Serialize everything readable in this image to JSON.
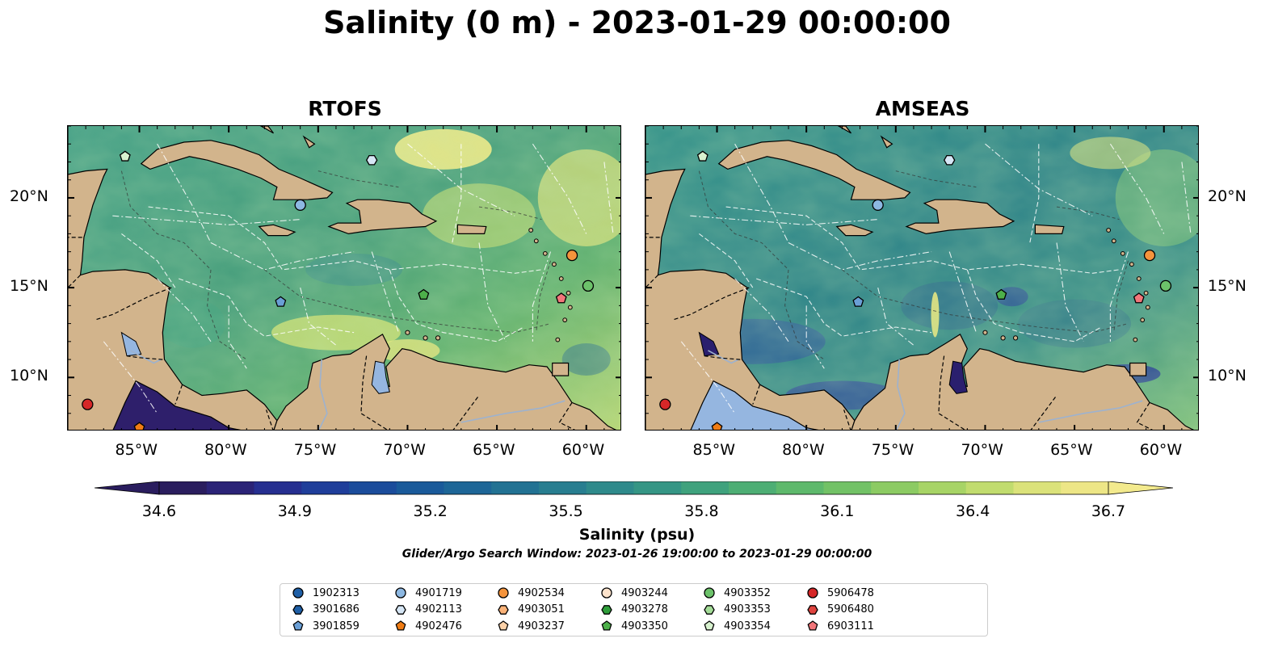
{
  "title": "Salinity (0 m) - 2023-01-29 00:00:00",
  "panels": [
    {
      "title": "RTOFS"
    },
    {
      "title": "AMSEAS"
    }
  ],
  "axes": {
    "lon_labels": [
      "85°W",
      "80°W",
      "75°W",
      "70°W",
      "65°W",
      "60°W"
    ],
    "lat_labels": [
      "20°N",
      "15°N",
      "10°N"
    ],
    "extent": {
      "lon": [
        -89,
        -58
      ],
      "lat": [
        7,
        24
      ]
    }
  },
  "colorbar": {
    "label": "Salinity (psu)",
    "ticks": [
      "34.6",
      "34.9",
      "35.2",
      "35.5",
      "35.8",
      "36.1",
      "36.4",
      "36.7"
    ],
    "range": [
      34.6,
      36.7
    ],
    "colormap": "haline",
    "extend": "both"
  },
  "search_window": "Glider/Argo Search Window: 2023-01-26 19:00:00 to 2023-01-29 00:00:00",
  "legend": [
    {
      "id": "1902313",
      "marker": "circle",
      "color": "#1f5fa6"
    },
    {
      "id": "3901686",
      "marker": "hexagon",
      "color": "#1f5fa6"
    },
    {
      "id": "3901859",
      "marker": "pentagon",
      "color": "#6a9fd6"
    },
    {
      "id": "4901719",
      "marker": "circle",
      "color": "#8db8e2"
    },
    {
      "id": "4902113",
      "marker": "hexagon",
      "color": "#d6e6f5"
    },
    {
      "id": "4902476",
      "marker": "pentagon",
      "color": "#f07c14"
    },
    {
      "id": "4902534",
      "marker": "circle",
      "color": "#f5943c"
    },
    {
      "id": "4903051",
      "marker": "hexagon",
      "color": "#fbb379"
    },
    {
      "id": "4903237",
      "marker": "pentagon",
      "color": "#fcd1a8"
    },
    {
      "id": "4903244",
      "marker": "circle",
      "color": "#fde3cc"
    },
    {
      "id": "4903278",
      "marker": "hexagon",
      "color": "#2f9e3a"
    },
    {
      "id": "4903350",
      "marker": "pentagon",
      "color": "#4db04a"
    },
    {
      "id": "4903352",
      "marker": "circle",
      "color": "#6cc26a"
    },
    {
      "id": "4903353",
      "marker": "hexagon",
      "color": "#a4dc98"
    },
    {
      "id": "4903354",
      "marker": "pentagon",
      "color": "#d8f2cf"
    },
    {
      "id": "5906478",
      "marker": "circle",
      "color": "#d62728"
    },
    {
      "id": "5906480",
      "marker": "hexagon",
      "color": "#e0443f"
    },
    {
      "id": "6903111",
      "marker": "pentagon",
      "color": "#f2767a"
    }
  ],
  "floats": [
    {
      "id": "4903354",
      "lon": -85.8,
      "lat": 22.3
    },
    {
      "id": "4902113",
      "lon": -72.0,
      "lat": 22.1
    },
    {
      "id": "4901719",
      "lon": -76.0,
      "lat": 19.6
    },
    {
      "id": "4902534",
      "lon": -60.8,
      "lat": 16.8
    },
    {
      "id": "4903352",
      "lon": -59.9,
      "lat": 15.1
    },
    {
      "id": "4903350",
      "lon": -69.1,
      "lat": 14.6
    },
    {
      "id": "3901859",
      "lon": -77.1,
      "lat": 14.2
    },
    {
      "id": "6903111",
      "lon": -61.4,
      "lat": 14.4
    },
    {
      "id": "5906478",
      "lon": -87.9,
      "lat": 8.5
    },
    {
      "id": "4902476",
      "lon": -85.0,
      "lat": 7.2
    }
  ]
}
